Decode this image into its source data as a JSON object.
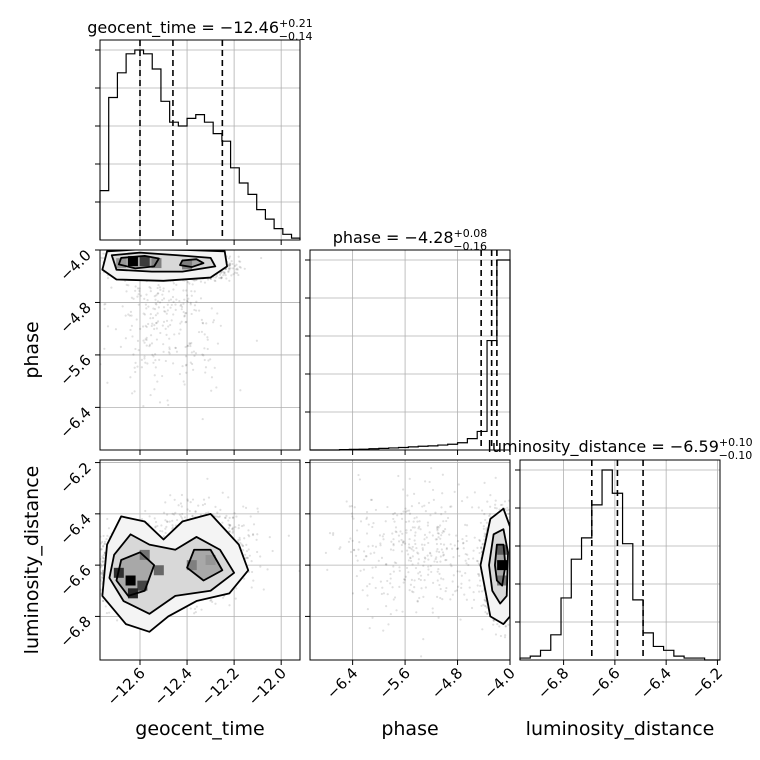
{
  "chart_data": {
    "type": "corner",
    "parameters": [
      "geocent_time",
      "phase",
      "luminosity_distance"
    ],
    "grid": true,
    "titles": [
      {
        "param": "geocent_time",
        "prefix": "geocent_time = ",
        "median": "−12.46",
        "plus": "+0.21",
        "minus": "−0.14"
      },
      {
        "param": "phase",
        "prefix": "phase = ",
        "median": "−4.28",
        "plus": "+0.08",
        "minus": "−0.16"
      },
      {
        "param": "luminosity_distance",
        "prefix": "luminosity_distance = ",
        "median": "−6.59",
        "plus": "+0.10",
        "minus": "−0.10"
      }
    ],
    "axes": {
      "geocent_time": {
        "range": [
          -12.77,
          -11.92
        ],
        "ticks": [
          -12.6,
          -12.4,
          -12.2,
          -12.0
        ],
        "tick_labels": [
          "−12.6",
          "−12.4",
          "−12.2",
          "−12.0"
        ]
      },
      "phase": {
        "range": [
          -7.05,
          -4.0
        ],
        "ticks": [
          -6.4,
          -5.6,
          -4.8,
          -4.0
        ],
        "tick_labels": [
          "−6.4",
          "−5.6",
          "−4.8",
          "−4.0"
        ]
      },
      "luminosity_distance": {
        "range": [
          -6.97,
          -6.19
        ],
        "ticks": [
          -6.8,
          -6.6,
          -6.4,
          -6.2
        ],
        "tick_labels": [
          "−6.8",
          "−6.6",
          "−6.4",
          "−6.2"
        ]
      }
    },
    "histograms": {
      "geocent_time": {
        "bin_edges": [
          -12.77,
          -12.733,
          -12.696,
          -12.659,
          -12.622,
          -12.585,
          -12.548,
          -12.511,
          -12.474,
          -12.437,
          -12.4,
          -12.363,
          -12.326,
          -12.289,
          -12.252,
          -12.215,
          -12.178,
          -12.141,
          -12.104,
          -12.067,
          -12.03,
          -11.993,
          -11.956,
          -11.92
        ],
        "counts": [
          0.26,
          0.75,
          0.88,
          0.98,
          1.0,
          0.98,
          0.9,
          0.73,
          0.62,
          0.6,
          0.64,
          0.66,
          0.62,
          0.56,
          0.52,
          0.38,
          0.3,
          0.24,
          0.16,
          0.11,
          0.06,
          0.03,
          0.01
        ],
        "quantiles": [
          -12.6,
          -12.46,
          -12.25
        ]
      },
      "phase": {
        "bin_edges": [
          -7.05,
          -6.9,
          -6.75,
          -6.6,
          -6.45,
          -6.3,
          -6.15,
          -6.0,
          -5.85,
          -5.7,
          -5.55,
          -5.4,
          -5.25,
          -5.1,
          -4.95,
          -4.8,
          -4.65,
          -4.5,
          -4.35,
          -4.2,
          -4.0
        ],
        "counts": [
          0.0,
          0.0,
          0.0,
          0.002,
          0.003,
          0.004,
          0.006,
          0.008,
          0.01,
          0.012,
          0.015,
          0.018,
          0.02,
          0.024,
          0.028,
          0.035,
          0.055,
          0.09,
          0.53,
          0.92
        ],
        "quantiles": [
          -4.44,
          -4.28,
          -4.2
        ]
      },
      "luminosity_distance": {
        "bin_edges": [
          -6.97,
          -6.93,
          -6.89,
          -6.85,
          -6.81,
          -6.77,
          -6.73,
          -6.69,
          -6.65,
          -6.61,
          -6.57,
          -6.53,
          -6.49,
          -6.45,
          -6.41,
          -6.37,
          -6.33,
          -6.29,
          -6.25,
          -6.21,
          -6.19
        ],
        "counts": [
          0.01,
          0.02,
          0.05,
          0.13,
          0.32,
          0.52,
          0.63,
          0.8,
          0.98,
          0.86,
          0.6,
          0.31,
          0.14,
          0.07,
          0.05,
          0.02,
          0.01,
          0.01,
          0.0,
          0.0
        ],
        "quantiles": [
          -6.69,
          -6.59,
          -6.49
        ]
      }
    },
    "hist2d": [
      {
        "x": "geocent_time",
        "y": "phase",
        "modes": [
          {
            "x": -12.6,
            "y": -4.2,
            "sx": 0.06,
            "sy": 0.09,
            "w": 0.6
          },
          {
            "x": -12.35,
            "y": -4.25,
            "sx": 0.07,
            "sy": 0.1,
            "w": 0.3
          },
          {
            "x": -12.5,
            "y": -5.1,
            "sx": 0.12,
            "sy": 0.5,
            "w": 0.1
          }
        ],
        "density_cells": [
          {
            "x": -12.63,
            "y": -4.17,
            "level": 1.0
          },
          {
            "x": -12.58,
            "y": -4.17,
            "level": 0.75
          },
          {
            "x": -12.53,
            "y": -4.2,
            "level": 0.45
          },
          {
            "x": -12.68,
            "y": -4.2,
            "level": 0.35
          },
          {
            "x": -12.4,
            "y": -4.22,
            "level": 0.45
          }
        ],
        "contours": [
          {
            "level": 1,
            "points": [
              [
                -12.74,
                -4.02
              ],
              [
                -12.6,
                -3.99
              ],
              [
                -12.4,
                -4.0
              ],
              [
                -12.24,
                -4.02
              ],
              [
                -12.23,
                -4.25
              ],
              [
                -12.3,
                -4.42
              ],
              [
                -12.5,
                -4.47
              ],
              [
                -12.7,
                -4.45
              ],
              [
                -12.76,
                -4.3
              ]
            ]
          },
          {
            "level": 2,
            "points": [
              [
                -12.72,
                -4.08
              ],
              [
                -12.6,
                -4.04
              ],
              [
                -12.44,
                -4.08
              ],
              [
                -12.3,
                -4.12
              ],
              [
                -12.28,
                -4.25
              ],
              [
                -12.42,
                -4.33
              ],
              [
                -12.55,
                -4.33
              ],
              [
                -12.7,
                -4.3
              ]
            ]
          },
          {
            "level": 3,
            "points": [
              [
                -12.68,
                -4.12
              ],
              [
                -12.58,
                -4.09
              ],
              [
                -12.52,
                -4.13
              ],
              [
                -12.54,
                -4.25
              ],
              [
                -12.62,
                -4.28
              ],
              [
                -12.69,
                -4.22
              ]
            ]
          },
          {
            "level": 3,
            "points": [
              [
                -12.42,
                -4.16
              ],
              [
                -12.36,
                -4.14
              ],
              [
                -12.33,
                -4.2
              ],
              [
                -12.38,
                -4.26
              ],
              [
                -12.43,
                -4.23
              ]
            ]
          }
        ]
      },
      {
        "x": "geocent_time",
        "y": "luminosity_distance",
        "modes": [
          {
            "x": -12.65,
            "y": -6.62,
            "sx": 0.06,
            "sy": 0.07,
            "w": 0.55
          },
          {
            "x": -12.35,
            "y": -6.55,
            "sx": 0.1,
            "sy": 0.08,
            "w": 0.45
          }
        ],
        "density_cells": [
          {
            "x": -12.64,
            "y": -6.66,
            "level": 1.0
          },
          {
            "x": -12.69,
            "y": -6.63,
            "level": 0.8
          },
          {
            "x": -12.59,
            "y": -6.68,
            "level": 0.7
          },
          {
            "x": -12.63,
            "y": -6.71,
            "level": 0.85
          },
          {
            "x": -12.58,
            "y": -6.56,
            "level": 0.5
          },
          {
            "x": -12.52,
            "y": -6.62,
            "level": 0.55
          },
          {
            "x": -12.38,
            "y": -6.6,
            "level": 0.45
          },
          {
            "x": -12.3,
            "y": -6.58,
            "level": 0.35
          }
        ],
        "contours": [
          {
            "level": 1,
            "points": [
              [
                -12.74,
                -6.52
              ],
              [
                -12.68,
                -6.41
              ],
              [
                -12.58,
                -6.43
              ],
              [
                -12.5,
                -6.5
              ],
              [
                -12.42,
                -6.43
              ],
              [
                -12.3,
                -6.4
              ],
              [
                -12.18,
                -6.52
              ],
              [
                -12.14,
                -6.62
              ],
              [
                -12.22,
                -6.71
              ],
              [
                -12.36,
                -6.74
              ],
              [
                -12.48,
                -6.8
              ],
              [
                -12.56,
                -6.86
              ],
              [
                -12.66,
                -6.83
              ],
              [
                -12.76,
                -6.72
              ]
            ]
          },
          {
            "level": 2,
            "points": [
              [
                -12.71,
                -6.56
              ],
              [
                -12.64,
                -6.48
              ],
              [
                -12.56,
                -6.52
              ],
              [
                -12.45,
                -6.54
              ],
              [
                -12.36,
                -6.49
              ],
              [
                -12.26,
                -6.54
              ],
              [
                -12.2,
                -6.63
              ],
              [
                -12.3,
                -6.7
              ],
              [
                -12.45,
                -6.72
              ],
              [
                -12.56,
                -6.79
              ],
              [
                -12.67,
                -6.74
              ],
              [
                -12.73,
                -6.65
              ]
            ]
          },
          {
            "level": 3,
            "points": [
              [
                -12.68,
                -6.58
              ],
              [
                -12.6,
                -6.55
              ],
              [
                -12.54,
                -6.6
              ],
              [
                -12.58,
                -6.7
              ],
              [
                -12.65,
                -6.72
              ],
              [
                -12.7,
                -6.66
              ]
            ]
          },
          {
            "level": 3,
            "points": [
              [
                -12.37,
                -6.54
              ],
              [
                -12.3,
                -6.54
              ],
              [
                -12.25,
                -6.62
              ],
              [
                -12.33,
                -6.66
              ],
              [
                -12.4,
                -6.61
              ]
            ]
          }
        ]
      },
      {
        "x": "phase",
        "y": "luminosity_distance",
        "modes": [
          {
            "x": -4.15,
            "y": -6.6,
            "sx": 0.12,
            "sy": 0.09,
            "w": 0.85
          },
          {
            "x": -5.4,
            "y": -6.55,
            "sx": 0.6,
            "sy": 0.12,
            "w": 0.15
          }
        ],
        "density_cells": [
          {
            "x": -4.12,
            "y": -6.6,
            "level": 1.0
          },
          {
            "x": -4.12,
            "y": -6.54,
            "level": 0.6
          },
          {
            "x": -4.12,
            "y": -6.66,
            "level": 0.5
          }
        ],
        "contours": [
          {
            "level": 1,
            "points": [
              [
                -4.3,
                -6.42
              ],
              [
                -4.1,
                -6.38
              ],
              [
                -4.0,
                -6.45
              ],
              [
                -4.0,
                -6.8
              ],
              [
                -4.1,
                -6.83
              ],
              [
                -4.3,
                -6.8
              ],
              [
                -4.45,
                -6.6
              ]
            ]
          },
          {
            "level": 2,
            "points": [
              [
                -4.25,
                -6.48
              ],
              [
                -4.1,
                -6.46
              ],
              [
                -4.03,
                -6.55
              ],
              [
                -4.05,
                -6.72
              ],
              [
                -4.15,
                -6.75
              ],
              [
                -4.27,
                -6.7
              ],
              [
                -4.32,
                -6.6
              ]
            ]
          },
          {
            "level": 3,
            "points": [
              [
                -4.2,
                -6.52
              ],
              [
                -4.1,
                -6.52
              ],
              [
                -4.07,
                -6.6
              ],
              [
                -4.12,
                -6.68
              ],
              [
                -4.2,
                -6.66
              ],
              [
                -4.23,
                -6.6
              ]
            ]
          }
        ]
      }
    ]
  }
}
